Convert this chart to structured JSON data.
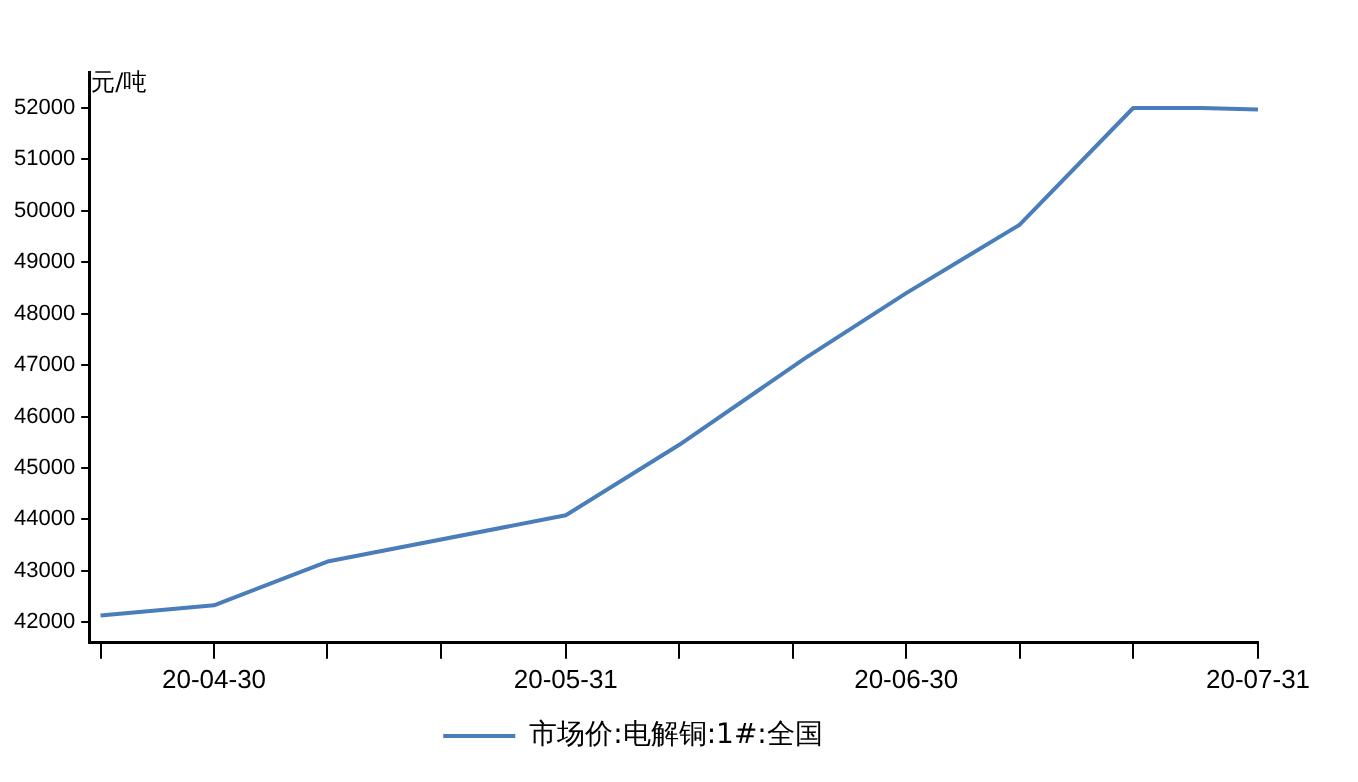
{
  "chart_data": {
    "type": "line",
    "ylabel": "元/吨",
    "x": [
      "--04-20",
      "--04-30",
      "--05-10",
      "--05-31",
      "--06-10",
      "--06-21",
      "--06-30",
      "--07-10",
      "--07-20",
      "--07-26",
      "--07-31"
    ],
    "series": [
      {
        "name": "市场价:电解铜:1#:全国",
        "color": "#4a7ebb",
        "values": [
          42130,
          42330,
          43180,
          44080,
          45450,
          47120,
          48400,
          49730,
          52000,
          52000,
          51970
        ]
      }
    ],
    "xlim": [
      "--04-19",
      "--07-31"
    ],
    "xticks": [
      {
        "value": "--04-20",
        "label": null
      },
      {
        "value": "--04-30",
        "label": "20-04-30"
      },
      {
        "value": "--05-10",
        "label": null
      },
      {
        "value": "--05-20",
        "label": null
      },
      {
        "value": "--05-31",
        "label": "20-05-31"
      },
      {
        "value": "--06-10",
        "label": null
      },
      {
        "value": "--06-20",
        "label": null
      },
      {
        "value": "--06-30",
        "label": "20-06-30"
      },
      {
        "value": "--07-10",
        "label": null
      },
      {
        "value": "--07-20",
        "label": null
      },
      {
        "value": "--07-31",
        "label": "20-07-31"
      }
    ],
    "ylim": [
      41600,
      52700
    ],
    "yticks": [
      42000,
      43000,
      44000,
      45000,
      46000,
      47000,
      48000,
      49000,
      50000,
      51000,
      52000
    ],
    "grid": false,
    "legend": "bottom",
    "marker": "none",
    "line_style": "solid"
  }
}
